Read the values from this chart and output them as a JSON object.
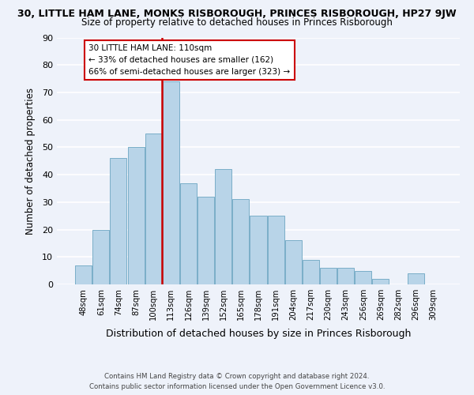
{
  "title_line1": "30, LITTLE HAM LANE, MONKS RISBOROUGH, PRINCES RISBOROUGH, HP27 9JW",
  "title_line2": "Size of property relative to detached houses in Princes Risborough",
  "xlabel": "Distribution of detached houses by size in Princes Risborough",
  "ylabel": "Number of detached properties",
  "bar_labels": [
    "48sqm",
    "61sqm",
    "74sqm",
    "87sqm",
    "100sqm",
    "113sqm",
    "126sqm",
    "139sqm",
    "152sqm",
    "165sqm",
    "178sqm",
    "191sqm",
    "204sqm",
    "217sqm",
    "230sqm",
    "243sqm",
    "256sqm",
    "269sqm",
    "282sqm",
    "296sqm",
    "309sqm"
  ],
  "bar_values": [
    7,
    20,
    46,
    50,
    55,
    74,
    37,
    32,
    42,
    31,
    25,
    25,
    16,
    9,
    6,
    6,
    5,
    2,
    0,
    4,
    0
  ],
  "bar_color": "#b8d4e8",
  "bar_edge_color": "#7aaec8",
  "vline_color": "#cc0000",
  "vline_pos": 4.5,
  "ylim": [
    0,
    90
  ],
  "yticks": [
    0,
    10,
    20,
    30,
    40,
    50,
    60,
    70,
    80,
    90
  ],
  "annotation_title": "30 LITTLE HAM LANE: 110sqm",
  "annotation_line1": "← 33% of detached houses are smaller (162)",
  "annotation_line2": "66% of semi-detached houses are larger (323) →",
  "footer_line1": "Contains HM Land Registry data © Crown copyright and database right 2024.",
  "footer_line2": "Contains public sector information licensed under the Open Government Licence v3.0.",
  "background_color": "#eef2fa",
  "grid_color": "#ffffff"
}
